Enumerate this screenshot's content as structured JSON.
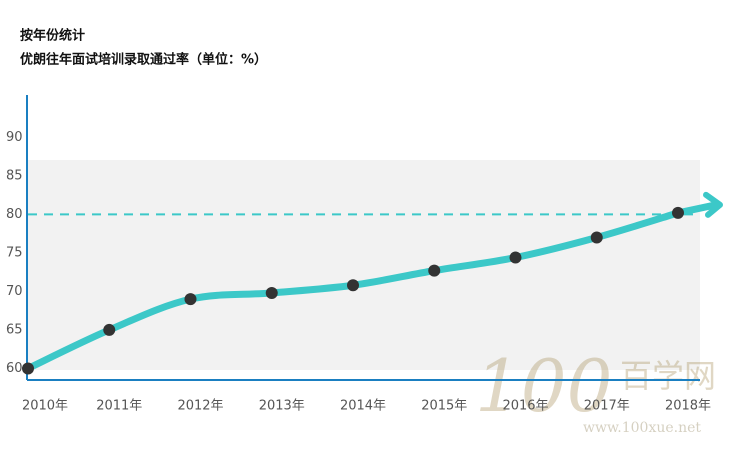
{
  "chart_data": {
    "type": "line",
    "title": "按年份统计",
    "subtitle": "优朗往年面试培训录取通过率（单位：%）",
    "categories": [
      "2010年",
      "2011年",
      "2012年",
      "2013年",
      "2014年",
      "2015年",
      "2016年",
      "2017年",
      "2018年"
    ],
    "values": [
      60,
      65,
      69,
      69.8,
      70.8,
      72.7,
      74.4,
      77,
      80.2
    ],
    "color": "#3cc8c8",
    "marker_color": "#333333",
    "ylim": [
      58.5,
      95.5
    ],
    "yticks": [
      60,
      65,
      70,
      75,
      80,
      85,
      90
    ],
    "reference_line": 80,
    "watermark": {
      "logo": "100",
      "name": "百学网",
      "url": "www.100xue.net"
    }
  }
}
